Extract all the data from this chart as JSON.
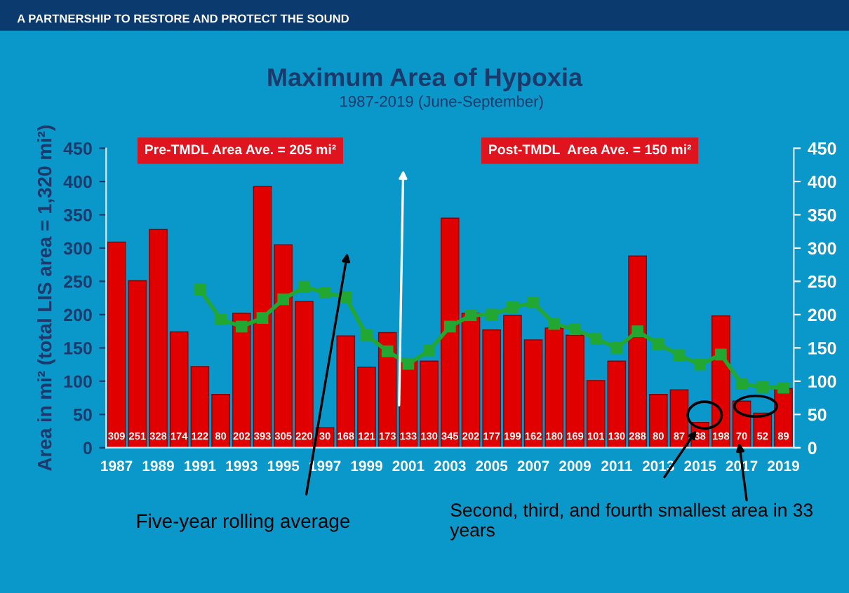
{
  "chart_data": {
    "type": "bar",
    "title": "Maximum Area of Hypoxia",
    "subtitle": "1987-2019 (June-September)",
    "ylabel": "Area in mi² (total LIS area = 1,320 mi²)",
    "categories": [
      "1987",
      null,
      "1989",
      null,
      "1991",
      null,
      "1993",
      null,
      "1995",
      null,
      "1997",
      null,
      "1999",
      null,
      "2001",
      null,
      "2003",
      null,
      "2005",
      null,
      "2007",
      null,
      "2009",
      null,
      "2011",
      null,
      "2013",
      null,
      "2015",
      null,
      "2017",
      null,
      "2019"
    ],
    "series": [
      {
        "color": "#e00000",
        "values": [
          309,
          251,
          328,
          174,
          122,
          80,
          202,
          393,
          305,
          220,
          30,
          168,
          121,
          173,
          133,
          130,
          345,
          202,
          177,
          199,
          162,
          180,
          169,
          101,
          130,
          288,
          80,
          87,
          38,
          198,
          70,
          52,
          89
        ],
        "value_labels": [
          "309",
          "251",
          "328",
          "174",
          "122",
          "80",
          "202",
          "393",
          "305",
          "220",
          "30",
          "168",
          "121",
          "173",
          "133",
          "130",
          "345",
          "202",
          "177",
          "199",
          "162",
          "180",
          "169",
          "101",
          "130",
          "288",
          "80",
          "87",
          "38",
          "198",
          "70",
          "52",
          "89"
        ]
      },
      {
        "type": "line",
        "color": "#22a832",
        "marker": "square",
        "values": [
          null,
          null,
          null,
          null,
          238,
          193,
          182,
          195,
          223,
          242,
          233,
          226,
          169,
          145,
          126,
          146,
          182,
          199,
          200,
          211,
          218,
          186,
          178,
          164,
          150,
          175,
          156,
          139,
          125,
          140,
          96,
          91,
          90
        ]
      }
    ],
    "ylim": [
      0,
      450
    ],
    "yticks": [
      0,
      50,
      100,
      150,
      200,
      250,
      300,
      350,
      400,
      450
    ],
    "y2lim": [
      0,
      450
    ],
    "y2ticks": [
      0,
      50,
      100,
      150,
      200,
      250,
      300,
      350,
      400,
      450
    ],
    "annotations": [
      "A PARTNERSHIP TO RESTORE AND PROTECT THE SOUND",
      "Pre-TMDL Area Ave. = 205 mi²",
      "Post-TMDL  Area Ave. = 150 mi²",
      "Five-year rolling average",
      "Second, third, and fourth smallest area in 33 years"
    ]
  }
}
